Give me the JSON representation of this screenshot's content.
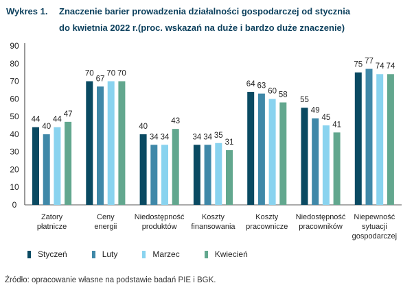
{
  "title": {
    "label": "Wykres 1.",
    "line1": "Znaczenie barier prowadzenia działalności gospodarczej od stycznia",
    "line2": "do kwietnia 2022 r.(proc. wskazań na duże i bardzo duże znaczenie)"
  },
  "source": "Źródło: opracowanie własne na podstawie badań PIE i BGK.",
  "chart_data": {
    "type": "bar",
    "title": "Znaczenie barier prowadzenia działalności gospodarczej od stycznia do kwietnia 2022 r.(proc. wskazań na duże i bardzo duże znaczenie)",
    "categories": [
      [
        "Zatory",
        "płatnicze"
      ],
      [
        "Ceny",
        "energii"
      ],
      [
        "Niedostępność",
        "produktów"
      ],
      [
        "Koszty",
        "finansowania"
      ],
      [
        "Koszty",
        "pracownicze"
      ],
      [
        "Niedostępność",
        "pracowników"
      ],
      [
        "Niepewność",
        "sytuacji",
        "gospodarczej"
      ]
    ],
    "series": [
      {
        "name": "Styczeń",
        "color": "#0a4a62",
        "values": [
          44,
          70,
          40,
          34,
          64,
          55,
          75
        ]
      },
      {
        "name": "Luty",
        "color": "#3f88a8",
        "values": [
          40,
          67,
          34,
          34,
          63,
          49,
          77
        ]
      },
      {
        "name": "Marzec",
        "color": "#89d3ef",
        "values": [
          44,
          70,
          34,
          35,
          60,
          45,
          74
        ]
      },
      {
        "name": "Kwiecień",
        "color": "#62a78e",
        "values": [
          47,
          70,
          43,
          31,
          58,
          41,
          74
        ]
      }
    ],
    "yticks": [
      "0",
      "10",
      "20",
      "30",
      "40",
      "50",
      "60",
      "70",
      "80",
      "90"
    ],
    "ylim": [
      0,
      90
    ],
    "xlabel": "",
    "ylabel": "",
    "grid": false,
    "legend": "bottom-left"
  }
}
